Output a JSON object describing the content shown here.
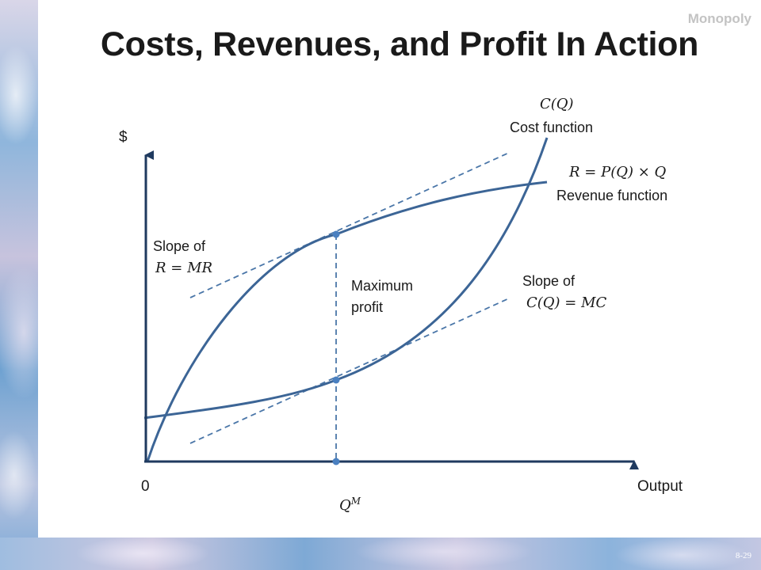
{
  "slide": {
    "section": "Monopoly",
    "title": "Costs, Revenues, and Profit In Action",
    "number": "8-29"
  },
  "diagram": {
    "y_axis_label": "$",
    "x_axis_label": "Output",
    "origin_label": "0",
    "q_label": "Q",
    "q_superscript": "M",
    "cost_function": {
      "formula": "C(Q)",
      "name": "Cost function"
    },
    "revenue_function": {
      "formula": "R = P(Q) × Q",
      "name": "Revenue function"
    },
    "slope_r": {
      "line1": "Slope of",
      "line2": "R = MR"
    },
    "slope_c": {
      "line1": "Slope of",
      "line2": "C(Q) = MC"
    },
    "max_profit": {
      "line1": "Maximum",
      "line2": "profit"
    }
  },
  "colors": {
    "curve": "#3c6596",
    "dashed": "#4a76a8",
    "axis": "#1f3a5f",
    "point": "#4a80c0"
  }
}
